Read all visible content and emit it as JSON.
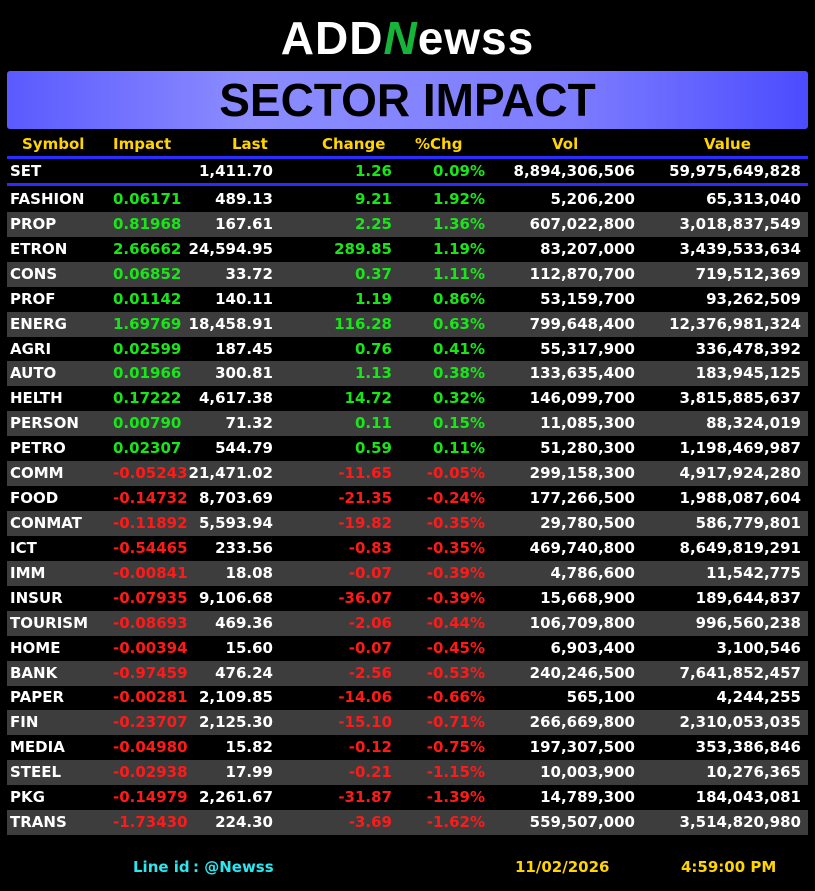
{
  "logo": {
    "part1": "ADD",
    "part2": "N",
    "part3": "ewss"
  },
  "banner_title": "SECTOR IMPACT",
  "columns": {
    "symbol": "Symbol",
    "impact": "Impact",
    "last": "Last",
    "change": "Change",
    "pct": "%Chg",
    "vol": "Vol",
    "value": "Value"
  },
  "set_row": {
    "symbol": "SET",
    "impact": "",
    "last": "1,411.70",
    "change": "1.26",
    "pct": "0.09%",
    "vol": "8,894,306,506",
    "value": "59,975,649,828"
  },
  "rows": [
    {
      "symbol": "FASHION",
      "impact": "0.06171",
      "last": "489.13",
      "change": "9.21",
      "pct": "1.92%",
      "vol": "5,206,200",
      "value": "65,313,040",
      "dir": "pos"
    },
    {
      "symbol": "PROP",
      "impact": "0.81968",
      "last": "167.61",
      "change": "2.25",
      "pct": "1.36%",
      "vol": "607,022,800",
      "value": "3,018,837,549",
      "dir": "pos"
    },
    {
      "symbol": "ETRON",
      "impact": "2.66662",
      "last": "24,594.95",
      "change": "289.85",
      "pct": "1.19%",
      "vol": "83,207,000",
      "value": "3,439,533,634",
      "dir": "pos"
    },
    {
      "symbol": "CONS",
      "impact": "0.06852",
      "last": "33.72",
      "change": "0.37",
      "pct": "1.11%",
      "vol": "112,870,700",
      "value": "719,512,369",
      "dir": "pos"
    },
    {
      "symbol": "PROF",
      "impact": "0.01142",
      "last": "140.11",
      "change": "1.19",
      "pct": "0.86%",
      "vol": "53,159,700",
      "value": "93,262,509",
      "dir": "pos"
    },
    {
      "symbol": "ENERG",
      "impact": "1.69769",
      "last": "18,458.91",
      "change": "116.28",
      "pct": "0.63%",
      "vol": "799,648,400",
      "value": "12,376,981,324",
      "dir": "pos"
    },
    {
      "symbol": "AGRI",
      "impact": "0.02599",
      "last": "187.45",
      "change": "0.76",
      "pct": "0.41%",
      "vol": "55,317,900",
      "value": "336,478,392",
      "dir": "pos"
    },
    {
      "symbol": "AUTO",
      "impact": "0.01966",
      "last": "300.81",
      "change": "1.13",
      "pct": "0.38%",
      "vol": "133,635,400",
      "value": "183,945,125",
      "dir": "pos"
    },
    {
      "symbol": "HELTH",
      "impact": "0.17222",
      "last": "4,617.38",
      "change": "14.72",
      "pct": "0.32%",
      "vol": "146,099,700",
      "value": "3,815,885,637",
      "dir": "pos"
    },
    {
      "symbol": "PERSON",
      "impact": "0.00790",
      "last": "71.32",
      "change": "0.11",
      "pct": "0.15%",
      "vol": "11,085,300",
      "value": "88,324,019",
      "dir": "pos"
    },
    {
      "symbol": "PETRO",
      "impact": "0.02307",
      "last": "544.79",
      "change": "0.59",
      "pct": "0.11%",
      "vol": "51,280,300",
      "value": "1,198,469,987",
      "dir": "pos"
    },
    {
      "symbol": "COMM",
      "impact": "-0.05243",
      "last": "21,471.02",
      "change": "-11.65",
      "pct": "-0.05%",
      "vol": "299,158,300",
      "value": "4,917,924,280",
      "dir": "neg"
    },
    {
      "symbol": "FOOD",
      "impact": "-0.14732",
      "last": "8,703.69",
      "change": "-21.35",
      "pct": "-0.24%",
      "vol": "177,266,500",
      "value": "1,988,087,604",
      "dir": "neg"
    },
    {
      "symbol": "CONMAT",
      "impact": "-0.11892",
      "last": "5,593.94",
      "change": "-19.82",
      "pct": "-0.35%",
      "vol": "29,780,500",
      "value": "586,779,801",
      "dir": "neg"
    },
    {
      "symbol": "ICT",
      "impact": "-0.54465",
      "last": "233.56",
      "change": "-0.83",
      "pct": "-0.35%",
      "vol": "469,740,800",
      "value": "8,649,819,291",
      "dir": "neg"
    },
    {
      "symbol": "IMM",
      "impact": "-0.00841",
      "last": "18.08",
      "change": "-0.07",
      "pct": "-0.39%",
      "vol": "4,786,600",
      "value": "11,542,775",
      "dir": "neg"
    },
    {
      "symbol": "INSUR",
      "impact": "-0.07935",
      "last": "9,106.68",
      "change": "-36.07",
      "pct": "-0.39%",
      "vol": "15,668,900",
      "value": "189,644,837",
      "dir": "neg"
    },
    {
      "symbol": "TOURISM",
      "impact": "-0.08693",
      "last": "469.36",
      "change": "-2.06",
      "pct": "-0.44%",
      "vol": "106,709,800",
      "value": "996,560,238",
      "dir": "neg"
    },
    {
      "symbol": "HOME",
      "impact": "-0.00394",
      "last": "15.60",
      "change": "-0.07",
      "pct": "-0.45%",
      "vol": "6,903,400",
      "value": "3,100,546",
      "dir": "neg"
    },
    {
      "symbol": "BANK",
      "impact": "-0.97459",
      "last": "476.24",
      "change": "-2.56",
      "pct": "-0.53%",
      "vol": "240,246,500",
      "value": "7,641,852,457",
      "dir": "neg"
    },
    {
      "symbol": "PAPER",
      "impact": "-0.00281",
      "last": "2,109.85",
      "change": "-14.06",
      "pct": "-0.66%",
      "vol": "565,100",
      "value": "4,244,255",
      "dir": "neg"
    },
    {
      "symbol": "FIN",
      "impact": "-0.23707",
      "last": "2,125.30",
      "change": "-15.10",
      "pct": "-0.71%",
      "vol": "266,669,800",
      "value": "2,310,053,035",
      "dir": "neg"
    },
    {
      "symbol": "MEDIA",
      "impact": "-0.04980",
      "last": "15.82",
      "change": "-0.12",
      "pct": "-0.75%",
      "vol": "197,307,500",
      "value": "353,386,846",
      "dir": "neg"
    },
    {
      "symbol": "STEEL",
      "impact": "-0.02938",
      "last": "17.99",
      "change": "-0.21",
      "pct": "-1.15%",
      "vol": "10,003,900",
      "value": "10,276,365",
      "dir": "neg"
    },
    {
      "symbol": "PKG",
      "impact": "-0.14979",
      "last": "2,261.67",
      "change": "-31.87",
      "pct": "-1.39%",
      "vol": "14,789,300",
      "value": "184,043,081",
      "dir": "neg"
    },
    {
      "symbol": "TRANS",
      "impact": "-1.73430",
      "last": "224.30",
      "change": "-3.69",
      "pct": "-1.62%",
      "vol": "559,507,000",
      "value": "3,514,820,980",
      "dir": "neg"
    }
  ],
  "colors": {
    "positive": "#19e619",
    "negative": "#ff1a1a",
    "header": "#ffd400",
    "footer_line": "#2ce6f0",
    "banner": "#7d7dff"
  },
  "footer": {
    "line_id_label": "Line id",
    "line_id_value": ": @Newss",
    "date": "11/02/2026",
    "time": "4:59:00 PM"
  }
}
